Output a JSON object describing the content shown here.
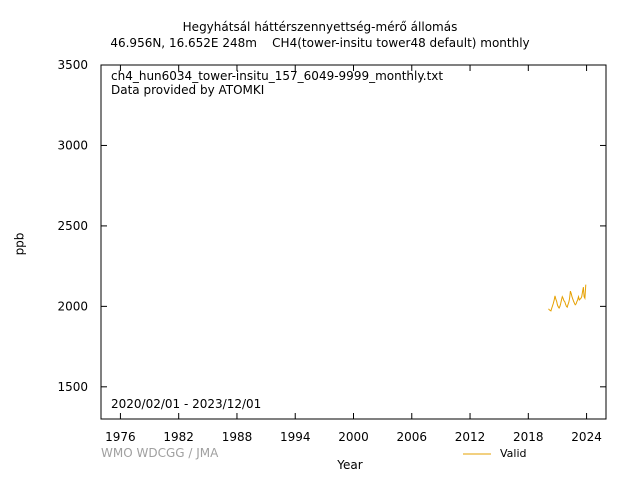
{
  "header": {
    "title_line1": "Hegyhátsál háttérszennyettség-mérő állomás",
    "title_line2": "46.956N, 16.652E 248m    CH4(tower-insitu tower48 default) monthly"
  },
  "annotations": {
    "filename": "ch4_hun6034_tower-insitu_157_6049-9999_monthly.txt",
    "provider": "Data provided by ATOMKI",
    "date_range": "2020/02/01 - 2023/12/01"
  },
  "credit": "WMO WDCGG / JMA",
  "chart_data": {
    "type": "line",
    "xlabel": "Year",
    "ylabel": "ppb",
    "xlim": [
      1974,
      2026
    ],
    "ylim": [
      1300,
      3500
    ],
    "x_ticks": [
      1976,
      1982,
      1988,
      1994,
      2000,
      2006,
      2012,
      2018,
      2024
    ],
    "y_ticks": [
      1500,
      2000,
      2500,
      3000,
      3500
    ],
    "grid": false,
    "legend_placement": "bottom-right",
    "series": [
      {
        "name": "Valid",
        "color": "#e6a000",
        "x": [
          2020.08,
          2020.17,
          2020.25,
          2020.33,
          2020.42,
          2020.5,
          2020.58,
          2020.67,
          2020.75,
          2020.83,
          2020.92,
          2021.0,
          2021.08,
          2021.17,
          2021.25,
          2021.33,
          2021.42,
          2021.5,
          2021.58,
          2021.67,
          2021.75,
          2021.83,
          2021.92,
          2022.0,
          2022.08,
          2022.17,
          2022.25,
          2022.33,
          2022.42,
          2022.5,
          2022.58,
          2022.67,
          2022.75,
          2022.83,
          2022.92,
          2023.0,
          2023.08,
          2023.17,
          2023.25,
          2023.33,
          2023.42,
          2023.5,
          2023.58,
          2023.67,
          2023.75,
          2023.83,
          2023.92
        ],
        "y": [
          1985,
          1978,
          1975,
          1972,
          1990,
          2005,
          2020,
          2040,
          2065,
          2045,
          2030,
          2010,
          1998,
          1990,
          2000,
          2015,
          2040,
          2060,
          2050,
          2035,
          2030,
          2015,
          2000,
          1995,
          2010,
          2025,
          2050,
          2095,
          2080,
          2060,
          2045,
          2030,
          2020,
          2010,
          2015,
          2030,
          2040,
          2060,
          2040,
          2045,
          2050,
          2060,
          2090,
          2120,
          2060,
          2050,
          2135
        ]
      }
    ]
  }
}
